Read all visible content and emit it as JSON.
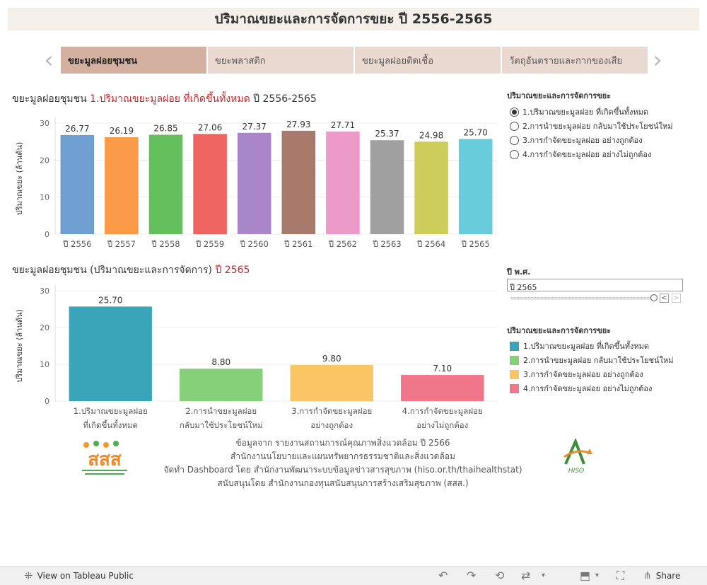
{
  "page_title": "ปริมาณขยะและการจัดการขยะ ปี 2556-2565",
  "tabs": [
    {
      "label": "ขยะมูลฝอยชุมชน",
      "active": true
    },
    {
      "label": "ขยะพลาสติก",
      "active": false
    },
    {
      "label": "ขยะมูลฝอยติดเชื้อ",
      "active": false
    },
    {
      "label": "วัตถุอันตรายและกากของเสีย",
      "active": false
    }
  ],
  "nav": {
    "prev_icon": "chevron-left-icon",
    "next_icon": "chevron-right-icon"
  },
  "chart1": {
    "title_prefix": "ขยะมูลฝอยชุมชน",
    "title_highlight": "1.ปริมาณขยะมูลฝอย ที่เกิดขึ้นทั้งหมด",
    "title_suffix": "ปี 2556-2565"
  },
  "chart2": {
    "title_prefix": "ขยะมูลฝอยชุมชน (ปริมาณขยะและการจัดการ)",
    "title_highlight": "ปี 2565"
  },
  "chart_data": [
    {
      "type": "bar",
      "title": "ขยะมูลฝอยชุมชน 1.ปริมาณขยะมูลฝอย ที่เกิดขึ้นทั้งหมด ปี 2556-2565",
      "ylabel": "ปริมาณขยะ (ล้านตัน)",
      "xlabel": "",
      "ylim": [
        0,
        30
      ],
      "yticks": [
        0,
        10,
        20,
        30
      ],
      "categories": [
        "ปี 2556",
        "ปี 2557",
        "ปี 2558",
        "ปี 2559",
        "ปี 2560",
        "ปี 2561",
        "ปี 2562",
        "ปี 2563",
        "ปี 2564",
        "ปี 2565"
      ],
      "values": [
        26.77,
        26.19,
        26.85,
        27.06,
        27.37,
        27.93,
        27.71,
        25.37,
        24.98,
        25.7
      ],
      "value_labels": [
        "26.77",
        "26.19",
        "26.85",
        "27.06",
        "27.37",
        "27.93",
        "27.71",
        "25.37",
        "24.98",
        "25.70"
      ],
      "colors": [
        "#6f9fd0",
        "#fc9b47",
        "#64bf5c",
        "#ee6460",
        "#a986c7",
        "#a77a6c",
        "#ed99c9",
        "#a0a0a0",
        "#cfcd5a",
        "#69ccdb"
      ]
    },
    {
      "type": "bar",
      "title": "ขยะมูลฝอยชุมชน (ปริมาณขยะและการจัดการ) ปี 2565",
      "ylabel": "ปริมาณขยะ (ล้านตัน)",
      "xlabel": "",
      "ylim": [
        0,
        30
      ],
      "yticks": [
        0,
        10,
        20,
        30
      ],
      "categories": [
        [
          "1.ปริมาณขยะมูลฝอย",
          "ที่เกิดขึ้นทั้งหมด"
        ],
        [
          "2.การนำขยะมูลฝอย",
          "กลับมาใช้ประโยชน์ใหม่"
        ],
        [
          "3.การกำจัดขยะมูลฝอย",
          "อย่างถูกต้อง"
        ],
        [
          "4.การกำจัดขยะมูลฝอย",
          "อย่างไม่ถูกต้อง"
        ]
      ],
      "values": [
        25.7,
        8.8,
        9.8,
        7.1
      ],
      "value_labels": [
        "25.70",
        "8.80",
        "9.80",
        "7.10"
      ],
      "colors": [
        "#3aa5b9",
        "#86d07a",
        "#fbc566",
        "#f0768a"
      ]
    }
  ],
  "filter_panel": {
    "title": "ปริมาณขยะและการจัดการขยะ",
    "options": [
      {
        "label": "1.ปริมาณขยะมูลฝอย ที่เกิดขึ้นทั้งหมด",
        "selected": true
      },
      {
        "label": "2.การนำขยะมูลฝอย กลับมาใช้ประโยชน์ใหม่",
        "selected": false
      },
      {
        "label": "3.การกำจัดขยะมูลฝอย อย่างถูกต้อง",
        "selected": false
      },
      {
        "label": "4.การกำจัดขยะมูลฝอย อย่างไม่ถูกต้อง",
        "selected": false
      }
    ]
  },
  "year_filter": {
    "title": "ปี พ.ศ.",
    "value": "ปี 2565",
    "prev_label": "<",
    "next_label": ">"
  },
  "legend": {
    "title": "ปริมาณขยะและการจัดการขยะ",
    "items": [
      {
        "label": "1.ปริมาณขยะมูลฝอย ที่เกิดขึ้นทั้งหมด",
        "color": "#3aa5b9"
      },
      {
        "label": "2.การนำขยะมูลฝอย กลับมาใช้ประโยชน์ใหม่",
        "color": "#86d07a"
      },
      {
        "label": "3.การกำจัดขยะมูลฝอย อย่างถูกต้อง",
        "color": "#fbc566"
      },
      {
        "label": "4.การกำจัดขยะมูลฝอย อย่างไม่ถูกต้อง",
        "color": "#f0768a"
      }
    ]
  },
  "footer": {
    "lines": [
      "ข้อมูลจาก รายงานสถานการณ์คุณภาพสิ่งแวดล้อม ปี 2566",
      "สำนักงานนโยบายและแผนทรัพยากรธรรมชาติและสิ่งแวดล้อม",
      "จัดทำ Dashboard โดย สำนักงานพัฒนาระบบข้อมูลข่าวสารสุขภาพ (hiso.or.th/thaihealthstat)",
      "สนับสนุนโดย สำนักงานกองทุนสนับสนุนการสร้างเสริมสุขภาพ (สสส.)"
    ],
    "logo_left_text": "สสส",
    "logo_right_text": "HISO"
  },
  "toolbar": {
    "view_label": "View on Tableau Public",
    "share_label": "Share"
  }
}
